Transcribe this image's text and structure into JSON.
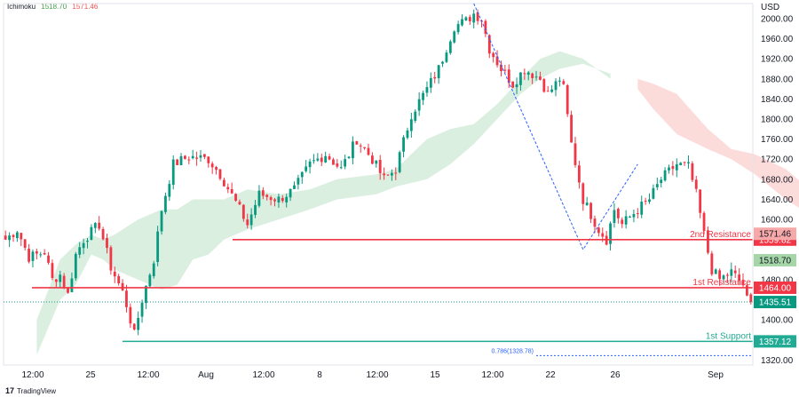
{
  "legend": {
    "indicator": "Ichimoku",
    "value1": "1518.70",
    "value2": "1571.46",
    "value1_color": "#43a047",
    "value2_color": "#ef5350"
  },
  "footer": {
    "brand": "TradingView",
    "logo_text": "17"
  },
  "chart_data": {
    "type": "candlestick",
    "title": "",
    "currency": "USD",
    "ylim": [
      1310,
      2030
    ],
    "y_ticks": [
      2000,
      1960,
      1920,
      1880,
      1840,
      1800,
      1760,
      1720,
      1680,
      1640,
      1600,
      1560,
      1520,
      1480,
      1440,
      1400,
      1360,
      1320
    ],
    "y_tick_labels": [
      "2000.00",
      "1960.00",
      "1920.00",
      "1880.00",
      "1840.00",
      "1800.00",
      "1760.00",
      "1720.00",
      "1680.00",
      "1640.00",
      "1600.00",
      "1560.00",
      "1520.00",
      "1480.00",
      "1440.00",
      "1400.00",
      "1360.00",
      "1320.00"
    ],
    "x_tick_labels": [
      "12:00",
      "25",
      "12:00",
      "Aug",
      "12:00",
      "8",
      "12:00",
      "15",
      "12:00",
      "22",
      "26",
      "Sep"
    ],
    "close_anchors": [
      [
        0,
        1560
      ],
      [
        3,
        1580
      ],
      [
        6,
        1525
      ],
      [
        10,
        1535
      ],
      [
        12,
        1480
      ],
      [
        14,
        1490
      ],
      [
        16,
        1450
      ],
      [
        18,
        1530
      ],
      [
        20,
        1560
      ],
      [
        24,
        1590
      ],
      [
        27,
        1505
      ],
      [
        30,
        1455
      ],
      [
        31,
        1430
      ],
      [
        33,
        1370
      ],
      [
        35,
        1440
      ],
      [
        38,
        1520
      ],
      [
        40,
        1620
      ],
      [
        43,
        1710
      ],
      [
        47,
        1725
      ],
      [
        52,
        1720
      ],
      [
        55,
        1690
      ],
      [
        60,
        1620
      ],
      [
        62,
        1590
      ],
      [
        65,
        1650
      ],
      [
        70,
        1640
      ],
      [
        74,
        1660
      ],
      [
        78,
        1710
      ],
      [
        82,
        1730
      ],
      [
        86,
        1700
      ],
      [
        90,
        1760
      ],
      [
        94,
        1720
      ],
      [
        97,
        1680
      ],
      [
        100,
        1700
      ],
      [
        104,
        1810
      ],
      [
        108,
        1860
      ],
      [
        111,
        1900
      ],
      [
        115,
        1985
      ],
      [
        118,
        1995
      ],
      [
        120,
        2010
      ],
      [
        122,
        2000
      ],
      [
        124,
        1940
      ],
      [
        127,
        1900
      ],
      [
        130,
        1870
      ],
      [
        133,
        1900
      ],
      [
        137,
        1880
      ],
      [
        139,
        1850
      ],
      [
        142,
        1880
      ],
      [
        143,
        1860
      ],
      [
        145,
        1750
      ],
      [
        148,
        1640
      ],
      [
        152,
        1580
      ],
      [
        154,
        1560
      ],
      [
        156,
        1620
      ],
      [
        158,
        1590
      ],
      [
        162,
        1620
      ],
      [
        165,
        1640
      ],
      [
        168,
        1680
      ],
      [
        172,
        1710
      ],
      [
        175,
        1705
      ],
      [
        177,
        1650
      ],
      [
        179,
        1570
      ],
      [
        181,
        1500
      ],
      [
        183,
        1480
      ],
      [
        186,
        1495
      ],
      [
        189,
        1470
      ],
      [
        190,
        1440
      ],
      [
        191,
        1435.51
      ]
    ],
    "series": [
      {
        "name": "Kumo cloud",
        "values": [
          [
            8,
            1330
          ],
          [
            14,
            1440
          ],
          [
            18,
            1470
          ],
          [
            22,
            1530
          ],
          [
            25,
            1520
          ],
          [
            28,
            1500
          ],
          [
            34,
            1480
          ],
          [
            40,
            1460
          ],
          [
            44,
            1470
          ],
          [
            48,
            1520
          ],
          [
            52,
            1530
          ],
          [
            56,
            1560
          ],
          [
            62,
            1580
          ],
          [
            70,
            1600
          ],
          [
            78,
            1620
          ],
          [
            85,
            1640
          ],
          [
            95,
            1650
          ],
          [
            100,
            1665
          ],
          [
            108,
            1680
          ],
          [
            114,
            1710
          ],
          [
            120,
            1750
          ],
          [
            126,
            1800
          ],
          [
            132,
            1850
          ],
          [
            137,
            1880
          ],
          [
            142,
            1900
          ],
          [
            148,
            1910
          ],
          [
            155,
            1890
          ]
        ],
        "cloud_b": [
          [
            8,
            1400
          ],
          [
            14,
            1520
          ],
          [
            18,
            1550
          ],
          [
            22,
            1570
          ],
          [
            25,
            1560
          ],
          [
            28,
            1570
          ],
          [
            34,
            1600
          ],
          [
            40,
            1620
          ],
          [
            44,
            1620
          ],
          [
            48,
            1640
          ],
          [
            52,
            1640
          ],
          [
            56,
            1640
          ],
          [
            62,
            1660
          ],
          [
            70,
            1650
          ],
          [
            78,
            1660
          ],
          [
            85,
            1680
          ],
          [
            95,
            1690
          ],
          [
            100,
            1700
          ],
          [
            108,
            1760
          ],
          [
            114,
            1780
          ],
          [
            120,
            1790
          ],
          [
            126,
            1830
          ],
          [
            132,
            1880
          ],
          [
            137,
            1920
          ],
          [
            142,
            1935
          ],
          [
            148,
            1920
          ],
          [
            155,
            1880
          ]
        ]
      },
      {
        "name": "Kumo cloud (bearish)",
        "values": [
          [
            162,
            1860
          ],
          [
            166,
            1820
          ],
          [
            172,
            1770
          ],
          [
            180,
            1740
          ],
          [
            186,
            1720
          ],
          [
            192,
            1690
          ],
          [
            200,
            1640
          ],
          [
            206,
            1610
          ],
          [
            212,
            1575
          ]
        ],
        "cloud_b": [
          [
            162,
            1880
          ],
          [
            166,
            1870
          ],
          [
            172,
            1850
          ],
          [
            180,
            1780
          ],
          [
            186,
            1740
          ],
          [
            192,
            1730
          ],
          [
            200,
            1700
          ],
          [
            206,
            1660
          ],
          [
            212,
            1640
          ]
        ]
      }
    ],
    "levels": [
      {
        "name": "2nd Resistance",
        "value": 1559.82,
        "label": "1559.82",
        "color": "#f23645"
      },
      {
        "name": "1st Resistance",
        "value": 1464.0,
        "label": "1464.00",
        "color": "#f23645"
      },
      {
        "name": "1st Support",
        "value": 1357.12,
        "label": "1357.12",
        "color": "#22ab94"
      }
    ],
    "fib": {
      "text": "0.786(1328.78)",
      "value": 1328.78,
      "color": "#2962ff"
    },
    "price_tags": [
      {
        "value": 1571.46,
        "label": "1571.46",
        "bg": "#f7a8a8",
        "fg": "#131722"
      },
      {
        "value": 1518.7,
        "label": "1518.70",
        "bg": "#a5d6a7",
        "fg": "#131722"
      },
      {
        "value": 1435.51,
        "label": "1435.51",
        "bg": "#089981",
        "fg": "#ffffff"
      }
    ],
    "last_price": 1435.51,
    "trendline": [
      [
        120,
        2030
      ],
      [
        148,
        1540
      ],
      [
        162,
        1710
      ]
    ],
    "colors": {
      "up": "#089981",
      "down": "#f23645",
      "bull_cloud": "#d5ecdc",
      "bear_cloud": "#fbd5d5"
    }
  }
}
